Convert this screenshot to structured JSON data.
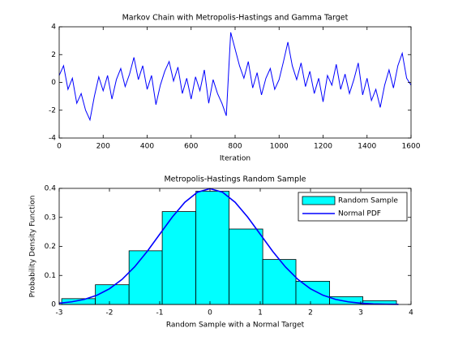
{
  "chart_data": [
    {
      "type": "line",
      "title": "Markov Chain with Metropolis-Hastings and Gamma Target",
      "xlabel": "Iteration",
      "x": [
        0,
        20,
        40,
        60,
        80,
        100,
        120,
        140,
        160,
        180,
        200,
        220,
        240,
        260,
        280,
        300,
        320,
        340,
        360,
        380,
        400,
        420,
        440,
        460,
        480,
        500,
        520,
        540,
        560,
        580,
        600,
        620,
        640,
        660,
        680,
        700,
        720,
        740,
        760,
        780,
        800,
        820,
        840,
        860,
        880,
        900,
        920,
        940,
        960,
        980,
        1000,
        1020,
        1040,
        1060,
        1080,
        1100,
        1120,
        1140,
        1160,
        1180,
        1200,
        1220,
        1240,
        1260,
        1280,
        1300,
        1320,
        1340,
        1360,
        1380,
        1400,
        1420,
        1440,
        1460,
        1480,
        1500,
        1520,
        1540,
        1560,
        1580,
        1600
      ],
      "values": [
        0.5,
        1.2,
        -0.5,
        0.3,
        -1.5,
        -0.8,
        -2.0,
        -2.7,
        -1.0,
        0.4,
        -0.6,
        0.5,
        -1.2,
        0.2,
        1.0,
        -0.3,
        0.6,
        1.8,
        0.2,
        1.2,
        -0.5,
        0.5,
        -1.6,
        -0.2,
        0.8,
        1.5,
        0.1,
        1.1,
        -0.8,
        0.3,
        -1.2,
        0.4,
        -0.6,
        0.9,
        -1.5,
        0.2,
        -0.8,
        -1.5,
        -2.4,
        3.6,
        2.4,
        1.2,
        0.3,
        1.5,
        -0.4,
        0.7,
        -0.9,
        0.3,
        1.0,
        -0.5,
        0.2,
        1.5,
        2.9,
        1.2,
        0.2,
        1.4,
        -0.3,
        0.8,
        -0.8,
        0.3,
        -1.4,
        0.5,
        -0.2,
        1.3,
        -0.5,
        0.6,
        -0.8,
        0.2,
        1.4,
        -0.9,
        0.3,
        -1.3,
        -0.5,
        -1.8,
        -0.2,
        0.9,
        -0.4,
        1.2,
        2.1,
        0.3,
        -0.2
      ],
      "color": "#0000ff",
      "xlim": [
        0,
        1600
      ],
      "xticks": [
        0,
        200,
        400,
        600,
        800,
        1000,
        1200,
        1400,
        1600
      ],
      "ylim": [
        -4,
        4
      ],
      "yticks": [
        -4,
        -2,
        0,
        2,
        4
      ]
    },
    {
      "type": "histogram",
      "title": "Metropolis-Hastings Random Sample",
      "xlabel": "Random Sample with a Normal Target",
      "ylabel": "Probability Density Function",
      "bins": [
        -2.95,
        -2.28,
        -1.61,
        -0.95,
        -0.28,
        0.38,
        1.05,
        1.71,
        2.38,
        3.04,
        3.71
      ],
      "series": [
        {
          "name": "Random Sample",
          "type": "histogram",
          "color": "#00ffff",
          "values": [
            0.02,
            0.068,
            0.185,
            0.32,
            0.39,
            0.26,
            0.155,
            0.08,
            0.027,
            0.013
          ]
        },
        {
          "name": "Normal PDF",
          "type": "line",
          "color": "#0000ff",
          "x": [
            -3,
            -2.75,
            -2.5,
            -2.25,
            -2,
            -1.75,
            -1.5,
            -1.25,
            -1,
            -0.75,
            -0.5,
            -0.25,
            0,
            0.25,
            0.5,
            0.75,
            1,
            1.25,
            1.5,
            1.75,
            2,
            2.25,
            2.5,
            2.75,
            3,
            3.25,
            3.5,
            3.75
          ],
          "values": [
            0.0044,
            0.0091,
            0.0175,
            0.0317,
            0.054,
            0.0863,
            0.1295,
            0.1826,
            0.242,
            0.3011,
            0.3521,
            0.3867,
            0.3989,
            0.3867,
            0.3521,
            0.3011,
            0.242,
            0.1826,
            0.1295,
            0.0863,
            0.054,
            0.0317,
            0.0175,
            0.0091,
            0.0044,
            0.002,
            0.0009,
            0.0004
          ]
        }
      ],
      "legend": "northeast",
      "xlim": [
        -3,
        4
      ],
      "xticks": [
        -3,
        -2,
        -1,
        0,
        1,
        2,
        3,
        4
      ],
      "ylim": [
        0,
        0.4
      ],
      "yticks": [
        0,
        0.1,
        0.2,
        0.3,
        0.4
      ]
    }
  ]
}
